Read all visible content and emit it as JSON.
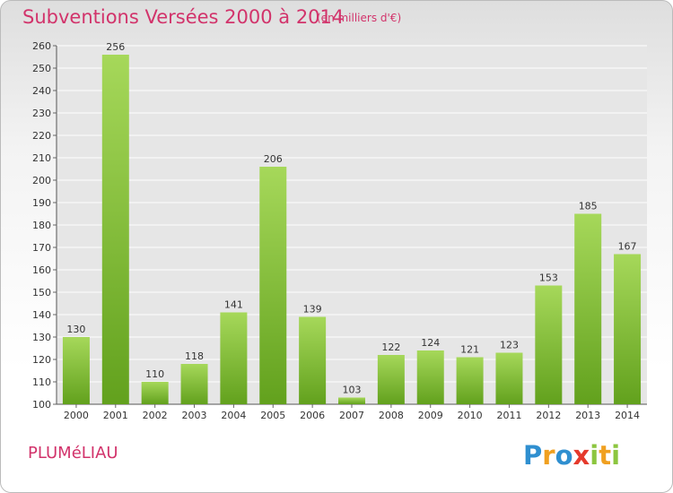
{
  "header": {
    "title": "Subventions Versées 2000 à 2014",
    "unit": "(en milliers d'€)"
  },
  "footer": {
    "commune": "PLUMéLIAU",
    "logo_text": "Proxiti"
  },
  "colors": {
    "title": "#d2336b",
    "bar_light": "#a6d85a",
    "bar_dark": "#62a11d",
    "grid": "#ffffff",
    "plot_bg": "#e6e6e6"
  },
  "chart_data": {
    "type": "bar",
    "title": "Subventions Versées 2000 à 2014",
    "subtitle": "(en milliers d'€)",
    "categories": [
      "2000",
      "2001",
      "2002",
      "2003",
      "2004",
      "2005",
      "2006",
      "2007",
      "2008",
      "2009",
      "2010",
      "2011",
      "2012",
      "2013",
      "2014"
    ],
    "values": [
      130,
      256,
      110,
      118,
      141,
      206,
      139,
      103,
      122,
      124,
      121,
      123,
      153,
      185,
      167
    ],
    "ylim": [
      100,
      260
    ],
    "yticks": [
      100,
      110,
      120,
      130,
      140,
      150,
      160,
      170,
      180,
      190,
      200,
      210,
      220,
      230,
      240,
      250,
      260
    ],
    "grid": true,
    "legend": "none"
  }
}
